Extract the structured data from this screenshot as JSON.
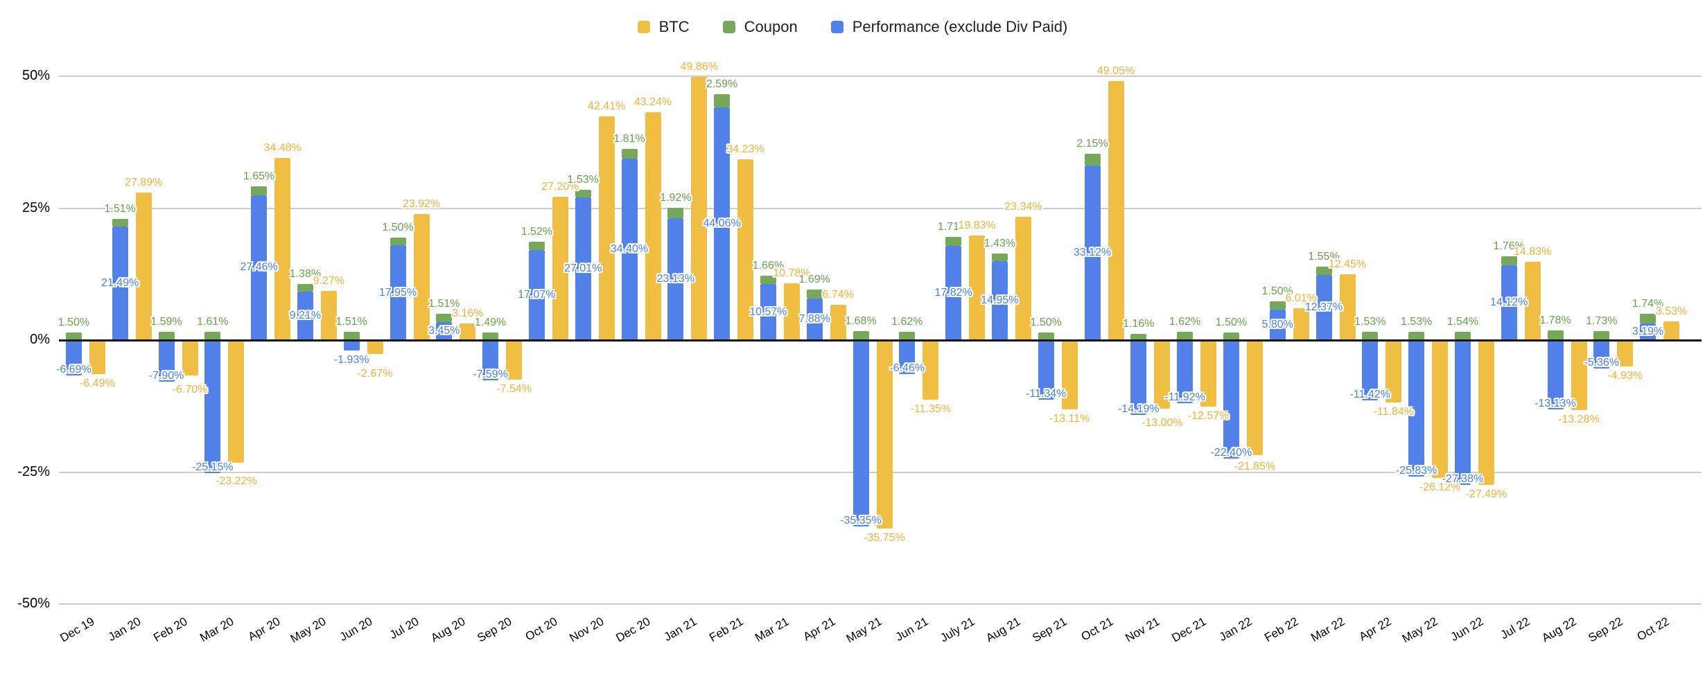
{
  "chart_data": {
    "type": "bar",
    "title": "",
    "legend_position": "top",
    "stacking": "Coupon is stacked on top of Performance (exclude Div Paid); BTC is a separate adjacent bar per month",
    "value_format": "0.00%",
    "grid": true,
    "categories": [
      "Dec 19",
      "Jan 20",
      "Feb 20",
      "Mar 20",
      "Apr 20",
      "May 20",
      "Jun 20",
      "Jul 20",
      "Aug 20",
      "Sep 20",
      "Oct 20",
      "Nov 20",
      "Dec 20",
      "Jan 21",
      "Feb 21",
      "Mar 21",
      "Apr 21",
      "May 21",
      "Jun 21",
      "July 21",
      "Aug 21",
      "Sep 21",
      "Oct 21",
      "Nov 21",
      "Dec 21",
      "Jan 22",
      "Feb 22",
      "Mar 22",
      "Apr 22",
      "May 22",
      "Jun 22",
      "Jul 22",
      "Aug 22",
      "Sep 22",
      "Oct 22"
    ],
    "series": [
      {
        "name": "BTC",
        "color": "#F0BE42",
        "label_color": "#F0B236",
        "values": [
          -6.49,
          27.89,
          -6.7,
          -23.22,
          34.48,
          9.27,
          -2.67,
          23.92,
          3.16,
          -7.54,
          27.2,
          42.41,
          43.24,
          49.86,
          34.23,
          10.78,
          6.74,
          -35.75,
          -11.35,
          19.83,
          23.34,
          -13.11,
          49.05,
          -13.0,
          -12.57,
          -21.85,
          6.01,
          12.45,
          -11.84,
          -26.12,
          -27.49,
          14.83,
          -13.28,
          -4.93,
          3.53
        ]
      },
      {
        "name": "Coupon",
        "color": "#76A85A",
        "label_color": "#68A04C",
        "values": [
          1.5,
          1.51,
          1.59,
          1.61,
          1.65,
          1.38,
          1.51,
          1.5,
          1.51,
          1.49,
          1.52,
          1.53,
          1.81,
          1.92,
          2.59,
          1.66,
          1.69,
          1.68,
          1.62,
          1.71,
          1.43,
          1.5,
          2.15,
          1.16,
          1.62,
          1.5,
          1.5,
          1.55,
          1.53,
          1.53,
          1.54,
          1.76,
          1.78,
          1.73,
          1.74
        ]
      },
      {
        "name": "Performance (exclude Div Paid)",
        "color": "#5281E9",
        "label_color": "#4A80E8",
        "values": [
          -6.69,
          21.49,
          -7.9,
          -25.15,
          27.46,
          9.21,
          -1.93,
          17.95,
          3.45,
          -7.59,
          17.07,
          27.01,
          34.4,
          23.13,
          44.06,
          10.57,
          7.88,
          -35.35,
          -6.46,
          17.82,
          14.95,
          -11.34,
          33.12,
          -14.19,
          -11.92,
          -22.4,
          5.8,
          12.37,
          -11.42,
          -25.83,
          -27.38,
          14.12,
          -13.13,
          -5.36,
          3.19
        ]
      }
    ],
    "y_axis": {
      "min": -50,
      "max": 50,
      "ticks": [
        {
          "value": 50,
          "label": "50%"
        },
        {
          "value": 25,
          "label": "25%"
        },
        {
          "value": 0,
          "label": "0%"
        },
        {
          "value": -25,
          "label": "-25%"
        },
        {
          "value": -50,
          "label": "-50%"
        }
      ]
    }
  },
  "colors": {
    "background": "#FFFFFF",
    "gridline": "#CCCCCC",
    "zero_line": "#161616",
    "axis_text": "#000000",
    "legend_text": "#212121"
  }
}
